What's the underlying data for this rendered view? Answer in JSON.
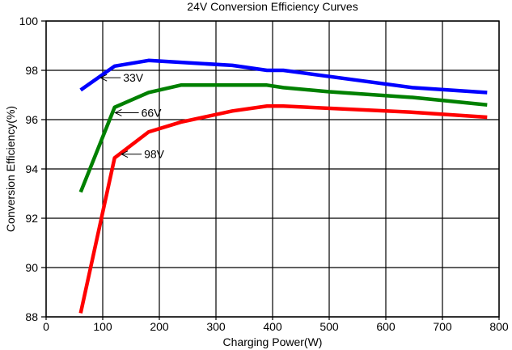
{
  "chart_data": {
    "type": "line",
    "title": "24V Conversion Efficiency Curves",
    "xlabel": "Charging Power(W)",
    "ylabel": "Conversion Efficiency(%)",
    "xlim": [
      0,
      800
    ],
    "ylim": [
      88,
      100
    ],
    "xticks": [
      0,
      100,
      200,
      300,
      400,
      500,
      600,
      700,
      800
    ],
    "yticks": [
      88,
      90,
      92,
      94,
      96,
      98,
      100
    ],
    "grid": true,
    "series": [
      {
        "name": "33V",
        "color": "#0000ff",
        "x": [
          61,
          121,
          181,
          329,
          390,
          419,
          647,
          779
        ],
        "y": [
          97.2,
          98.17,
          98.4,
          98.2,
          98.0,
          98.0,
          97.3,
          97.1
        ]
      },
      {
        "name": "66V",
        "color": "#008000",
        "x": [
          61,
          121,
          181,
          238,
          390,
          419,
          500,
          647,
          779
        ],
        "y": [
          93.06,
          96.5,
          97.1,
          97.4,
          97.4,
          97.3,
          97.13,
          96.9,
          96.6
        ]
      },
      {
        "name": "98V",
        "color": "#ff0000",
        "x": [
          61,
          121,
          181,
          238,
          329,
          390,
          419,
          647,
          779
        ],
        "y": [
          88.15,
          94.45,
          95.5,
          95.9,
          96.35,
          96.55,
          96.55,
          96.3,
          96.1
        ]
      }
    ],
    "annotations": [
      {
        "text": "33V",
        "arrow_to": [
          96,
          97.7
        ],
        "text_at": [
          136,
          97.7
        ]
      },
      {
        "text": "66V",
        "arrow_to": [
          122,
          96.28
        ],
        "text_at": [
          168,
          96.28
        ]
      },
      {
        "text": "98V",
        "arrow_to": [
          133,
          94.6
        ],
        "text_at": [
          173,
          94.6
        ]
      }
    ]
  }
}
